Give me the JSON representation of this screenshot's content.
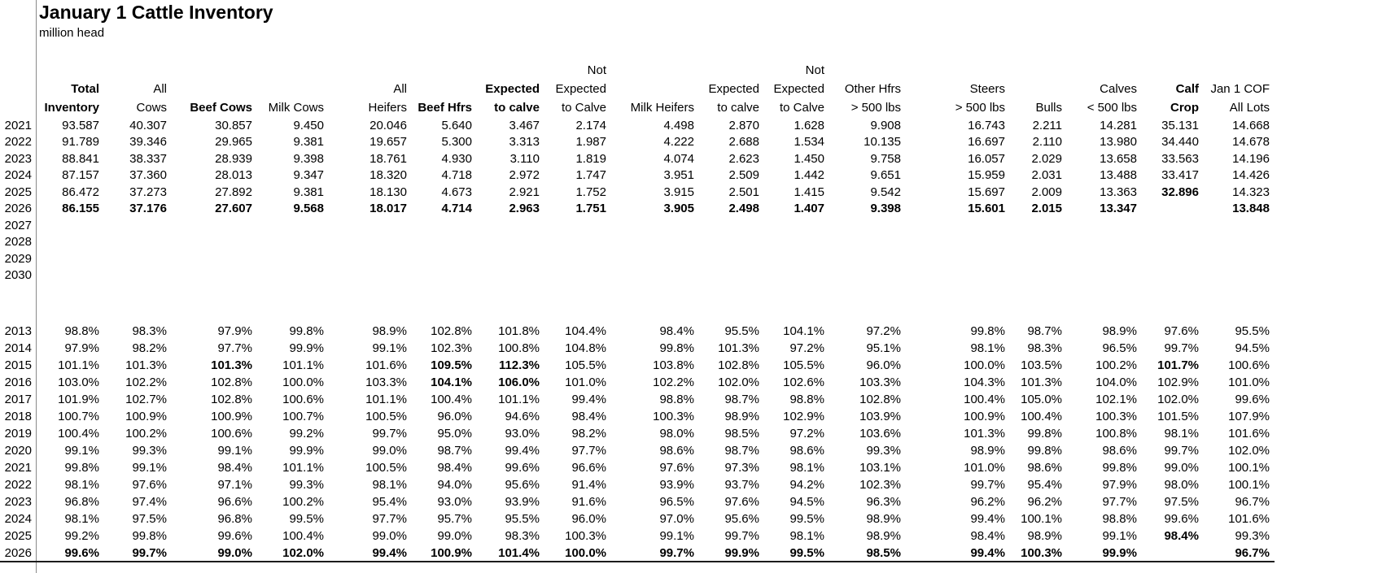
{
  "title": "January 1 Cattle Inventory",
  "subtitle": "million head",
  "table": {
    "columns": [
      {
        "label_lines": [
          "",
          "Total",
          "Inventory"
        ],
        "bold": true
      },
      {
        "label_lines": [
          "",
          "All",
          "Cows"
        ],
        "bold": false
      },
      {
        "label_lines": [
          "",
          "",
          "Beef Cows"
        ],
        "bold": true
      },
      {
        "label_lines": [
          "",
          "",
          "Milk Cows"
        ],
        "bold": false
      },
      {
        "label_lines": [
          "",
          "All",
          "Heifers"
        ],
        "bold": false
      },
      {
        "label_lines": [
          "",
          "",
          "Beef Hfrs"
        ],
        "bold": true
      },
      {
        "label_lines": [
          "",
          "Expected",
          "to calve"
        ],
        "bold": true
      },
      {
        "label_lines": [
          "Not",
          "Expected",
          "to Calve"
        ],
        "bold": false
      },
      {
        "label_lines": [
          "",
          "",
          "Milk Heifers"
        ],
        "bold": false
      },
      {
        "label_lines": [
          "",
          "Expected",
          "to calve"
        ],
        "bold": false
      },
      {
        "label_lines": [
          "Not",
          "Expected",
          "to Calve"
        ],
        "bold": false
      },
      {
        "label_lines": [
          "",
          "Other Hfrs",
          "> 500 lbs"
        ],
        "bold": false
      },
      {
        "label_lines": [
          "",
          "Steers",
          "> 500 lbs"
        ],
        "bold": false
      },
      {
        "label_lines": [
          "",
          "",
          "Bulls"
        ],
        "bold": false
      },
      {
        "label_lines": [
          "",
          "Calves",
          "< 500 lbs"
        ],
        "bold": false
      },
      {
        "label_lines": [
          "",
          "Calf",
          "Crop"
        ],
        "bold": true
      },
      {
        "label_lines": [
          "",
          "Jan 1 COF",
          "All Lots"
        ],
        "bold": false
      }
    ],
    "sections": [
      {
        "name": "inventory_million_head",
        "rows": [
          {
            "year": "2021",
            "bold": false,
            "bold_cells": [],
            "values": [
              "93.587",
              "40.307",
              "30.857",
              "9.450",
              "20.046",
              "5.640",
              "3.467",
              "2.174",
              "4.498",
              "2.870",
              "1.628",
              "9.908",
              "16.743",
              "2.211",
              "14.281",
              "35.131",
              "14.668"
            ]
          },
          {
            "year": "2022",
            "bold": false,
            "bold_cells": [],
            "values": [
              "91.789",
              "39.346",
              "29.965",
              "9.381",
              "19.657",
              "5.300",
              "3.313",
              "1.987",
              "4.222",
              "2.688",
              "1.534",
              "10.135",
              "16.697",
              "2.110",
              "13.980",
              "34.440",
              "14.678"
            ]
          },
          {
            "year": "2023",
            "bold": false,
            "bold_cells": [],
            "values": [
              "88.841",
              "38.337",
              "28.939",
              "9.398",
              "18.761",
              "4.930",
              "3.110",
              "1.819",
              "4.074",
              "2.623",
              "1.450",
              "9.758",
              "16.057",
              "2.029",
              "13.658",
              "33.563",
              "14.196"
            ]
          },
          {
            "year": "2024",
            "bold": false,
            "bold_cells": [],
            "values": [
              "87.157",
              "37.360",
              "28.013",
              "9.347",
              "18.320",
              "4.718",
              "2.972",
              "1.747",
              "3.951",
              "2.509",
              "1.442",
              "9.651",
              "15.959",
              "2.031",
              "13.488",
              "33.417",
              "14.426"
            ]
          },
          {
            "year": "2025",
            "bold": false,
            "bold_cells": [
              15
            ],
            "values": [
              "86.472",
              "37.273",
              "27.892",
              "9.381",
              "18.130",
              "4.673",
              "2.921",
              "1.752",
              "3.915",
              "2.501",
              "1.415",
              "9.542",
              "15.697",
              "2.009",
              "13.363",
              "32.896",
              "14.323"
            ]
          },
          {
            "year": "2026",
            "bold": true,
            "bold_cells": [],
            "values": [
              "86.155",
              "37.176",
              "27.607",
              "9.568",
              "18.017",
              "4.714",
              "2.963",
              "1.751",
              "3.905",
              "2.498",
              "1.407",
              "9.398",
              "15.601",
              "2.015",
              "13.347",
              "",
              "13.848"
            ]
          },
          {
            "year": "2027",
            "bold": false,
            "bold_cells": [],
            "values": [
              "",
              "",
              "",
              "",
              "",
              "",
              "",
              "",
              "",
              "",
              "",
              "",
              "",
              "",
              "",
              "",
              ""
            ]
          },
          {
            "year": "2028",
            "bold": false,
            "bold_cells": [],
            "values": [
              "",
              "",
              "",
              "",
              "",
              "",
              "",
              "",
              "",
              "",
              "",
              "",
              "",
              "",
              "",
              "",
              ""
            ]
          },
          {
            "year": "2029",
            "bold": false,
            "bold_cells": [],
            "values": [
              "",
              "",
              "",
              "",
              "",
              "",
              "",
              "",
              "",
              "",
              "",
              "",
              "",
              "",
              "",
              "",
              ""
            ]
          },
          {
            "year": "2030",
            "bold": false,
            "bold_cells": [],
            "values": [
              "",
              "",
              "",
              "",
              "",
              "",
              "",
              "",
              "",
              "",
              "",
              "",
              "",
              "",
              "",
              "",
              ""
            ]
          }
        ]
      },
      {
        "name": "percent_of_previous_year",
        "rows": [
          {
            "year": "2013",
            "bold": false,
            "bold_cells": [],
            "values": [
              "98.8%",
              "98.3%",
              "97.9%",
              "99.8%",
              "98.9%",
              "102.8%",
              "101.8%",
              "104.4%",
              "98.4%",
              "95.5%",
              "104.1%",
              "97.2%",
              "99.8%",
              "98.7%",
              "98.9%",
              "97.6%",
              "95.5%"
            ]
          },
          {
            "year": "2014",
            "bold": false,
            "bold_cells": [],
            "values": [
              "97.9%",
              "98.2%",
              "97.7%",
              "99.9%",
              "99.1%",
              "102.3%",
              "100.8%",
              "104.8%",
              "99.8%",
              "101.3%",
              "97.2%",
              "95.1%",
              "98.1%",
              "98.3%",
              "96.5%",
              "99.7%",
              "94.5%"
            ]
          },
          {
            "year": "2015",
            "bold": false,
            "bold_cells": [
              2,
              5,
              6,
              15
            ],
            "values": [
              "101.1%",
              "101.3%",
              "101.3%",
              "101.1%",
              "101.6%",
              "109.5%",
              "112.3%",
              "105.5%",
              "103.8%",
              "102.8%",
              "105.5%",
              "96.0%",
              "100.0%",
              "103.5%",
              "100.2%",
              "101.7%",
              "100.6%"
            ]
          },
          {
            "year": "2016",
            "bold": false,
            "bold_cells": [
              5,
              6
            ],
            "values": [
              "103.0%",
              "102.2%",
              "102.8%",
              "100.0%",
              "103.3%",
              "104.1%",
              "106.0%",
              "101.0%",
              "102.2%",
              "102.0%",
              "102.6%",
              "103.3%",
              "104.3%",
              "101.3%",
              "104.0%",
              "102.9%",
              "101.0%"
            ]
          },
          {
            "year": "2017",
            "bold": false,
            "bold_cells": [],
            "values": [
              "101.9%",
              "102.7%",
              "102.8%",
              "100.6%",
              "101.1%",
              "100.4%",
              "101.1%",
              "99.4%",
              "98.8%",
              "98.7%",
              "98.8%",
              "102.8%",
              "100.4%",
              "105.0%",
              "102.1%",
              "102.0%",
              "99.6%"
            ]
          },
          {
            "year": "2018",
            "bold": false,
            "bold_cells": [],
            "values": [
              "100.7%",
              "100.9%",
              "100.9%",
              "100.7%",
              "100.5%",
              "96.0%",
              "94.6%",
              "98.4%",
              "100.3%",
              "98.9%",
              "102.9%",
              "103.9%",
              "100.9%",
              "100.4%",
              "100.3%",
              "101.5%",
              "107.9%"
            ]
          },
          {
            "year": "2019",
            "bold": false,
            "bold_cells": [],
            "values": [
              "100.4%",
              "100.2%",
              "100.6%",
              "99.2%",
              "99.7%",
              "95.0%",
              "93.0%",
              "98.2%",
              "98.0%",
              "98.5%",
              "97.2%",
              "103.6%",
              "101.3%",
              "99.8%",
              "100.8%",
              "98.1%",
              "101.6%"
            ]
          },
          {
            "year": "2020",
            "bold": false,
            "bold_cells": [],
            "values": [
              "99.1%",
              "99.3%",
              "99.1%",
              "99.9%",
              "99.0%",
              "98.7%",
              "99.4%",
              "97.7%",
              "98.6%",
              "98.7%",
              "98.6%",
              "99.3%",
              "98.9%",
              "99.8%",
              "98.6%",
              "99.7%",
              "102.0%"
            ]
          },
          {
            "year": "2021",
            "bold": false,
            "bold_cells": [],
            "values": [
              "99.8%",
              "99.1%",
              "98.4%",
              "101.1%",
              "100.5%",
              "98.4%",
              "99.6%",
              "96.6%",
              "97.6%",
              "97.3%",
              "98.1%",
              "103.1%",
              "101.0%",
              "98.6%",
              "99.8%",
              "99.0%",
              "100.1%"
            ]
          },
          {
            "year": "2022",
            "bold": false,
            "bold_cells": [],
            "values": [
              "98.1%",
              "97.6%",
              "97.1%",
              "99.3%",
              "98.1%",
              "94.0%",
              "95.6%",
              "91.4%",
              "93.9%",
              "93.7%",
              "94.2%",
              "102.3%",
              "99.7%",
              "95.4%",
              "97.9%",
              "98.0%",
              "100.1%"
            ]
          },
          {
            "year": "2023",
            "bold": false,
            "bold_cells": [],
            "values": [
              "96.8%",
              "97.4%",
              "96.6%",
              "100.2%",
              "95.4%",
              "93.0%",
              "93.9%",
              "91.6%",
              "96.5%",
              "97.6%",
              "94.5%",
              "96.3%",
              "96.2%",
              "96.2%",
              "97.7%",
              "97.5%",
              "96.7%"
            ]
          },
          {
            "year": "2024",
            "bold": false,
            "bold_cells": [],
            "values": [
              "98.1%",
              "97.5%",
              "96.8%",
              "99.5%",
              "97.7%",
              "95.7%",
              "95.5%",
              "96.0%",
              "97.0%",
              "95.6%",
              "99.5%",
              "98.9%",
              "99.4%",
              "100.1%",
              "98.8%",
              "99.6%",
              "101.6%"
            ]
          },
          {
            "year": "2025",
            "bold": false,
            "bold_cells": [
              15
            ],
            "values": [
              "99.2%",
              "99.8%",
              "99.6%",
              "100.4%",
              "99.0%",
              "99.0%",
              "98.3%",
              "100.3%",
              "99.1%",
              "99.7%",
              "98.1%",
              "98.9%",
              "98.4%",
              "98.9%",
              "99.1%",
              "98.4%",
              "99.3%"
            ]
          },
          {
            "year": "2026",
            "bold": true,
            "bold_cells": [],
            "values": [
              "99.6%",
              "99.7%",
              "99.0%",
              "102.0%",
              "99.4%",
              "100.9%",
              "101.4%",
              "100.0%",
              "99.7%",
              "99.9%",
              "99.5%",
              "98.5%",
              "99.4%",
              "100.3%",
              "99.9%",
              "",
              "96.7%"
            ]
          }
        ]
      }
    ]
  }
}
